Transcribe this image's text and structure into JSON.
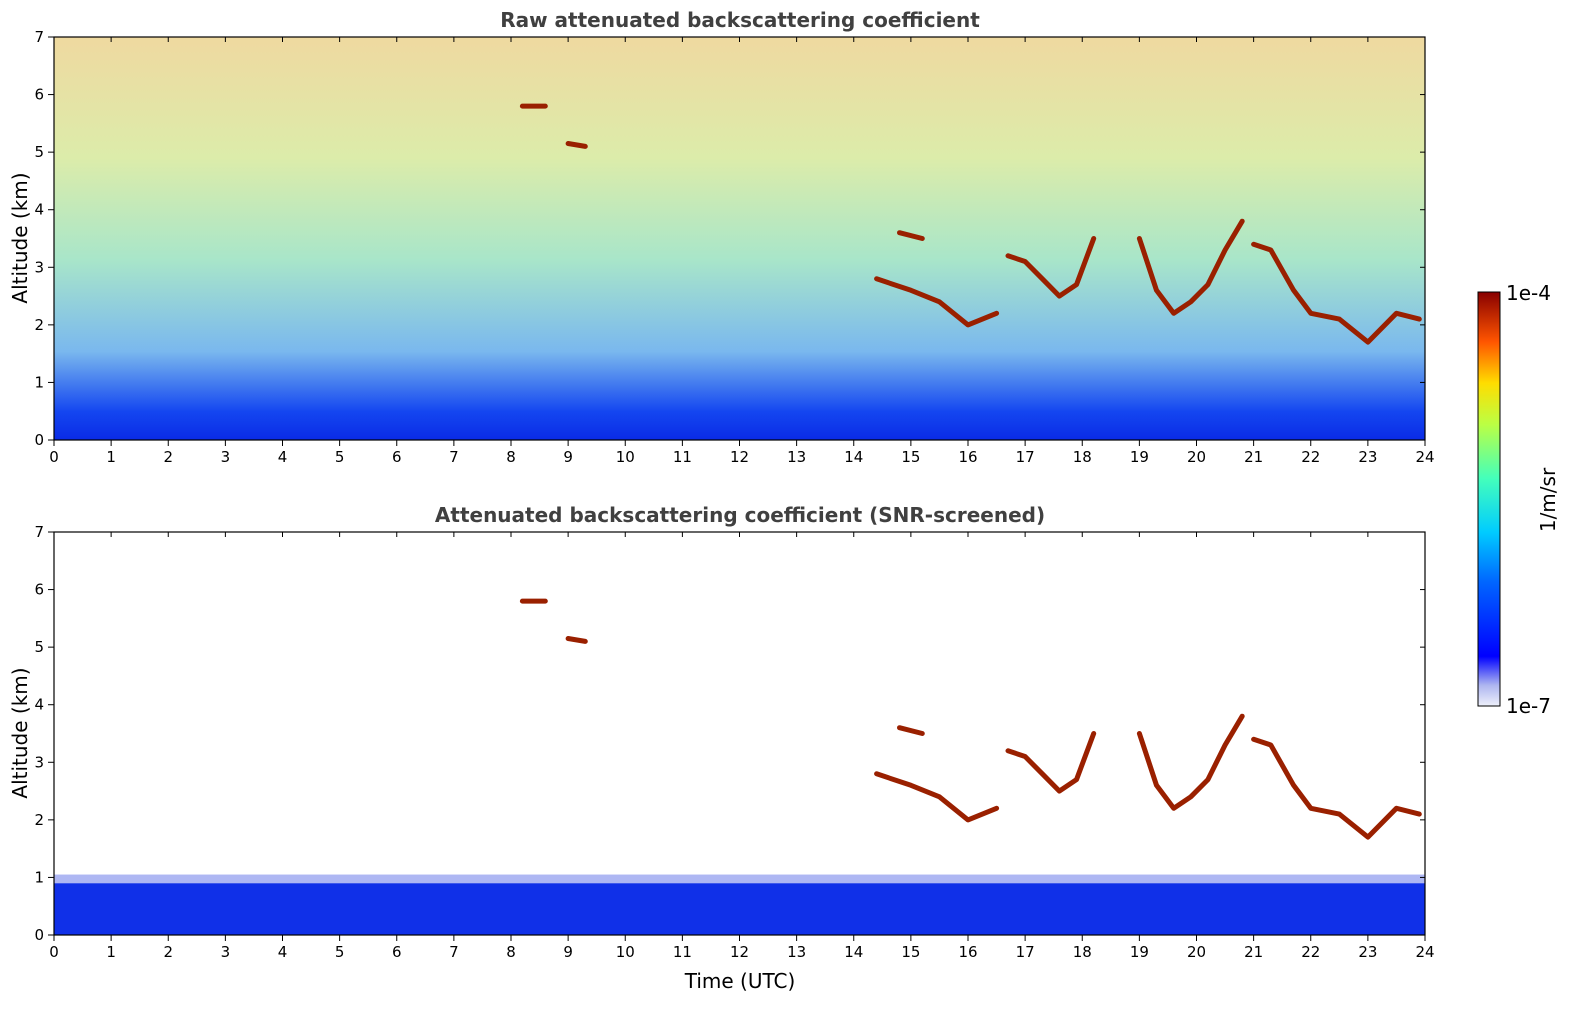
{
  "chart_data": [
    {
      "type": "heatmap",
      "title": "Raw attenuated backscattering coefficient",
      "xlabel": "",
      "ylabel": "Altitude (km)",
      "xlim": [
        0,
        24
      ],
      "ylim": [
        0,
        7
      ],
      "x_ticks": [
        "0",
        "1",
        "2",
        "3",
        "4",
        "5",
        "6",
        "7",
        "8",
        "9",
        "10",
        "11",
        "12",
        "13",
        "14",
        "15",
        "16",
        "17",
        "18",
        "19",
        "20",
        "21",
        "22",
        "23",
        "24"
      ],
      "y_ticks": [
        "0",
        "1",
        "2",
        "3",
        "4",
        "5",
        "6",
        "7"
      ],
      "noise_background": true,
      "features": [
        {
          "x": [
            14.4,
            15.0,
            15.5,
            16.0,
            16.5
          ],
          "y": [
            2.8,
            2.6,
            2.4,
            2.0,
            2.2
          ]
        },
        {
          "x": [
            14.8,
            15.2
          ],
          "y": [
            3.6,
            3.5
          ]
        },
        {
          "x": [
            16.7,
            17.0,
            17.3,
            17.6,
            17.9,
            18.2
          ],
          "y": [
            3.2,
            3.1,
            2.8,
            2.5,
            2.7,
            3.5
          ]
        },
        {
          "x": [
            19.0,
            19.3,
            19.6,
            19.9,
            20.2,
            20.5,
            20.8
          ],
          "y": [
            3.5,
            2.6,
            2.2,
            2.4,
            2.7,
            3.3,
            3.8
          ]
        },
        {
          "x": [
            21.0,
            21.3,
            21.7,
            22.0,
            22.5,
            23.0,
            23.5,
            23.9
          ],
          "y": [
            3.4,
            3.3,
            2.6,
            2.2,
            2.1,
            1.7,
            2.2,
            2.1
          ]
        },
        {
          "x": [
            8.2,
            8.6
          ],
          "y": [
            5.8,
            5.8
          ]
        },
        {
          "x": [
            9.0,
            9.3
          ],
          "y": [
            5.15,
            5.1
          ]
        }
      ]
    },
    {
      "type": "heatmap",
      "title": "Attenuated backscattering coefficient (SNR-screened)",
      "xlabel": "Time (UTC)",
      "ylabel": "Altitude (km)",
      "xlim": [
        0,
        24
      ],
      "ylim": [
        0,
        7
      ],
      "x_ticks": [
        "0",
        "1",
        "2",
        "3",
        "4",
        "5",
        "6",
        "7",
        "8",
        "9",
        "10",
        "11",
        "12",
        "13",
        "14",
        "15",
        "16",
        "17",
        "18",
        "19",
        "20",
        "21",
        "22",
        "23",
        "24"
      ],
      "y_ticks": [
        "0",
        "1",
        "2",
        "3",
        "4",
        "5",
        "6",
        "7"
      ],
      "noise_background": false,
      "features": [
        {
          "x": [
            14.4,
            15.0,
            15.5,
            16.0,
            16.5
          ],
          "y": [
            2.8,
            2.6,
            2.4,
            2.0,
            2.2
          ]
        },
        {
          "x": [
            14.8,
            15.2
          ],
          "y": [
            3.6,
            3.5
          ]
        },
        {
          "x": [
            16.7,
            17.0,
            17.3,
            17.6,
            17.9,
            18.2
          ],
          "y": [
            3.2,
            3.1,
            2.8,
            2.5,
            2.7,
            3.5
          ]
        },
        {
          "x": [
            19.0,
            19.3,
            19.6,
            19.9,
            20.2,
            20.5,
            20.8
          ],
          "y": [
            3.5,
            2.6,
            2.2,
            2.4,
            2.7,
            3.3,
            3.8
          ]
        },
        {
          "x": [
            21.0,
            21.3,
            21.7,
            22.0,
            22.5,
            23.0,
            23.5,
            23.9
          ],
          "y": [
            3.4,
            3.3,
            2.6,
            2.2,
            2.1,
            1.7,
            2.2,
            2.1
          ]
        },
        {
          "x": [
            8.2,
            8.6
          ],
          "y": [
            5.8,
            5.8
          ]
        },
        {
          "x": [
            9.0,
            9.3
          ],
          "y": [
            5.15,
            5.1
          ]
        }
      ]
    }
  ],
  "colorbar": {
    "label": "1/m/sr",
    "max_label": "1e-4",
    "min_label": "1e-7",
    "scale": "log",
    "colormap": "jet"
  }
}
